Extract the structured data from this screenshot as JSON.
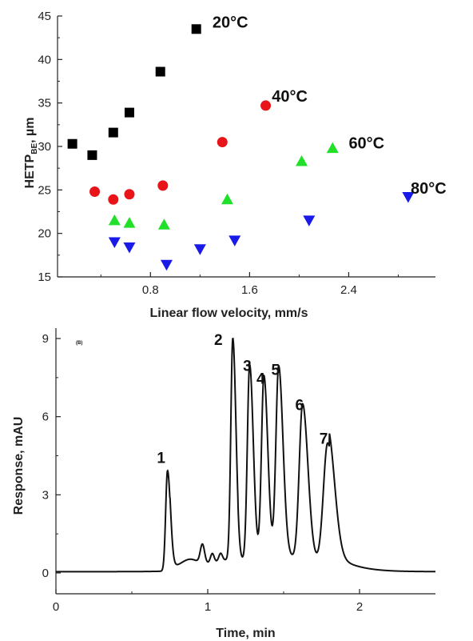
{
  "chart_data": [
    {
      "type": "scatter",
      "title": "",
      "xlabel": "Linear flow velocity, mm/s",
      "ylabel_main": "HETP",
      "ylabel_sub": "BE",
      "ylabel_tail": ", µm",
      "xlim": [
        0.05,
        3.1
      ],
      "ylim": [
        15,
        45
      ],
      "xticks": [
        {
          "v": 0.8,
          "label": "0.8"
        },
        {
          "v": 1.6,
          "label": "1.6"
        },
        {
          "v": 2.4,
          "label": "2.4"
        }
      ],
      "yticks": [
        {
          "v": 15,
          "label": "15"
        },
        {
          "v": 20,
          "label": "20"
        },
        {
          "v": 25,
          "label": "25"
        },
        {
          "v": 30,
          "label": "30"
        },
        {
          "v": 35,
          "label": "35"
        },
        {
          "v": 40,
          "label": "40"
        },
        {
          "v": 45,
          "label": "45"
        }
      ],
      "grid": false,
      "series": [
        {
          "name": "20°C",
          "marker": "square",
          "color": "#000000",
          "label_at": [
            1.3,
            44.3
          ],
          "points": [
            [
              0.17,
              30.3
            ],
            [
              0.33,
              29.0
            ],
            [
              0.5,
              31.6
            ],
            [
              0.63,
              33.9
            ],
            [
              0.88,
              38.6
            ],
            [
              1.17,
              43.5
            ]
          ]
        },
        {
          "name": "40°C",
          "marker": "circle",
          "color": "#e8141a",
          "label_at": [
            1.78,
            35.8
          ],
          "points": [
            [
              0.35,
              24.8
            ],
            [
              0.5,
              23.9
            ],
            [
              0.63,
              24.5
            ],
            [
              0.9,
              25.5
            ],
            [
              1.38,
              30.5
            ],
            [
              1.73,
              34.7
            ]
          ]
        },
        {
          "name": "60°C",
          "marker": "triangle-up",
          "color": "#22e02a",
          "label_at": [
            2.4,
            30.4
          ],
          "points": [
            [
              0.51,
              21.5
            ],
            [
              0.63,
              21.2
            ],
            [
              0.91,
              21.0
            ],
            [
              1.42,
              23.9
            ],
            [
              2.02,
              28.3
            ],
            [
              2.27,
              29.8
            ]
          ]
        },
        {
          "name": "80°C",
          "marker": "triangle-down",
          "color": "#1a1ae8",
          "label_at": [
            2.9,
            25.2
          ],
          "points": [
            [
              0.51,
              19.0
            ],
            [
              0.63,
              18.4
            ],
            [
              0.93,
              16.4
            ],
            [
              1.2,
              18.2
            ],
            [
              1.48,
              19.2
            ],
            [
              2.08,
              21.5
            ],
            [
              2.88,
              24.2
            ]
          ]
        }
      ]
    },
    {
      "type": "line",
      "title": "",
      "panel_label": "(B)",
      "xlabel": "Time, min",
      "ylabel": "Response, mAU",
      "xlim": [
        0,
        2.5
      ],
      "ylim": [
        -0.8,
        9.4
      ],
      "xticks": [
        {
          "v": 0,
          "label": "0"
        },
        {
          "v": 1,
          "label": "1"
        },
        {
          "v": 2,
          "label": "2"
        }
      ],
      "yticks": [
        {
          "v": 0,
          "label": "0"
        },
        {
          "v": 3,
          "label": "3"
        },
        {
          "v": 6,
          "label": "6"
        },
        {
          "v": 9,
          "label": "9"
        }
      ],
      "grid": false,
      "baseline": 0.05,
      "peaks": [
        {
          "label": "1",
          "t": 0.735,
          "h": 3.85,
          "w": 0.012
        },
        {
          "label": "2",
          "t": 1.165,
          "h": 8.45,
          "w": 0.013
        },
        {
          "label": "3",
          "t": 1.276,
          "h": 7.45,
          "w": 0.015
        },
        {
          "label": "4",
          "t": 1.37,
          "h": 6.95,
          "w": 0.016
        },
        {
          "label": "5",
          "t": 1.467,
          "h": 7.3,
          "w": 0.018
        },
        {
          "label": "6",
          "t": 1.625,
          "h": 5.95,
          "w": 0.022
        },
        {
          "label": "7",
          "t": 1.79,
          "h": 4.65,
          "w": 0.028
        }
      ],
      "minor_bumps": [
        {
          "t": 0.88,
          "h": 0.25,
          "w": 0.05
        },
        {
          "t": 0.965,
          "h": 0.72,
          "w": 0.014
        },
        {
          "t": 1.03,
          "h": 0.35,
          "w": 0.012
        },
        {
          "t": 1.085,
          "h": 0.3,
          "w": 0.012
        }
      ]
    }
  ]
}
